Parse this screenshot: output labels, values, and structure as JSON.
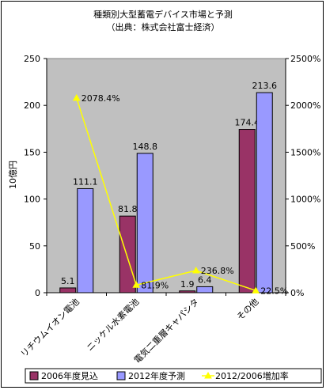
{
  "chart_data": {
    "type": "bar",
    "title": "種類別大型蓄電デバイス市場と予測",
    "subtitle": "（出典：株式会社富士経済）",
    "ylabel": "10億円",
    "categories": [
      "リチウムイオン電池",
      "ニッケル水素電池",
      "電気二重層キャパシタ",
      "その他"
    ],
    "series": [
      {
        "name": "2006年度見込",
        "type": "bar",
        "axis": "left",
        "color": "#993366",
        "values": [
          5.1,
          81.8,
          1.9,
          174.4
        ]
      },
      {
        "name": "2012年度予測",
        "type": "bar",
        "axis": "left",
        "color": "#9999ff",
        "values": [
          111.1,
          148.8,
          6.4,
          213.6
        ]
      },
      {
        "name": "2012/2006増加率",
        "type": "line",
        "axis": "right",
        "color": "#ffff00",
        "values": [
          2078.4,
          81.9,
          236.8,
          22.5
        ]
      }
    ],
    "bar_labels": [
      [
        "5.1",
        "81.8",
        "1.9",
        "174.4"
      ],
      [
        "111.1",
        "148.8",
        "6.4",
        "213.6"
      ]
    ],
    "rate_labels": [
      "2078.4%",
      "81.9%",
      "236.8%",
      "22.5%"
    ],
    "ylim": [
      0,
      250
    ],
    "yticks": [
      "0",
      "50",
      "100",
      "150",
      "200",
      "250"
    ],
    "y2lim": [
      0,
      2500
    ],
    "y2ticks": [
      "0%",
      "500%",
      "1000%",
      "1500%",
      "2000%",
      "2500%"
    ],
    "legend_position": "bottom",
    "plot_background": "#c0c0c0"
  }
}
